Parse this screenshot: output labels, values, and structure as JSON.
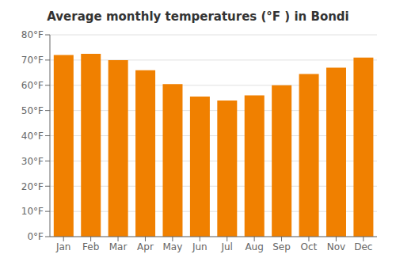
{
  "chart_data": {
    "type": "bar",
    "title": "Average monthly temperatures (°F ) in Bondi",
    "categories": [
      "Jan",
      "Feb",
      "Mar",
      "Apr",
      "May",
      "Jun",
      "Jul",
      "Aug",
      "Sep",
      "Oct",
      "Nov",
      "Dec"
    ],
    "values": [
      72,
      72.5,
      70,
      66,
      60.5,
      55.5,
      54,
      56,
      60,
      64.5,
      67,
      71
    ],
    "color": "#F08000",
    "ylim": [
      0,
      80
    ],
    "yticks": [
      {
        "value": 0,
        "label": "0°F"
      },
      {
        "value": 10,
        "label": "10°F"
      },
      {
        "value": 20,
        "label": "20°F"
      },
      {
        "value": 30,
        "label": "30°F"
      },
      {
        "value": 40,
        "label": "40°F"
      },
      {
        "value": 50,
        "label": "50°F"
      },
      {
        "value": 60,
        "label": "60°F"
      },
      {
        "value": 70,
        "label": "70°F"
      },
      {
        "value": 80,
        "label": "80°F"
      }
    ],
    "grid": true
  }
}
